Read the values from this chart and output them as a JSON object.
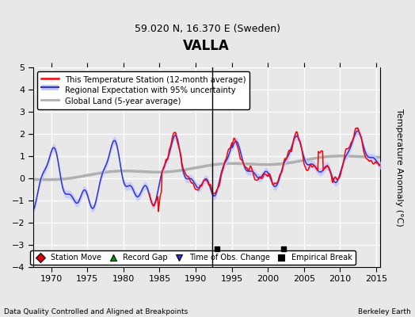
{
  "title": "VALLA",
  "subtitle": "59.020 N, 16.370 E (Sweden)",
  "ylabel": "Temperature Anomaly (°C)",
  "xlim": [
    1967.5,
    2015.5
  ],
  "ylim": [
    -4,
    5
  ],
  "yticks": [
    -4,
    -3,
    -2,
    -1,
    0,
    1,
    2,
    3,
    4,
    5
  ],
  "xticks": [
    1970,
    1975,
    1980,
    1985,
    1990,
    1995,
    2000,
    2005,
    2010,
    2015
  ],
  "station_color": "#ff0000",
  "regional_color": "#3333cc",
  "regional_fill_color": "#c0c8ff",
  "global_color": "#b0b0b0",
  "empirical_break_time_line": 1992.3,
  "empirical_break_markers": [
    1993.0,
    2002.2
  ],
  "footnote_left": "Data Quality Controlled and Aligned at Breakpoints",
  "footnote_right": "Berkeley Earth",
  "legend_lines": [
    {
      "label": "This Temperature Station (12-month average)",
      "color": "#ff0000",
      "lw": 1.5
    },
    {
      "label": "Regional Expectation with 95% uncertainty",
      "color": "#3333cc",
      "lw": 1.5
    },
    {
      "label": "Global Land (5-year average)",
      "color": "#b0b0b0",
      "lw": 2.0
    }
  ],
  "marker_legend": [
    {
      "label": "Station Move",
      "marker": "D",
      "color": "#dd0000"
    },
    {
      "label": "Record Gap",
      "marker": "^",
      "color": "#009900"
    },
    {
      "label": "Time of Obs. Change",
      "marker": "v",
      "color": "#3333cc"
    },
    {
      "label": "Empirical Break",
      "marker": "s",
      "color": "#000000"
    }
  ],
  "bg_color": "#e8e8e8",
  "plot_bg_color": "#e8e8e8"
}
